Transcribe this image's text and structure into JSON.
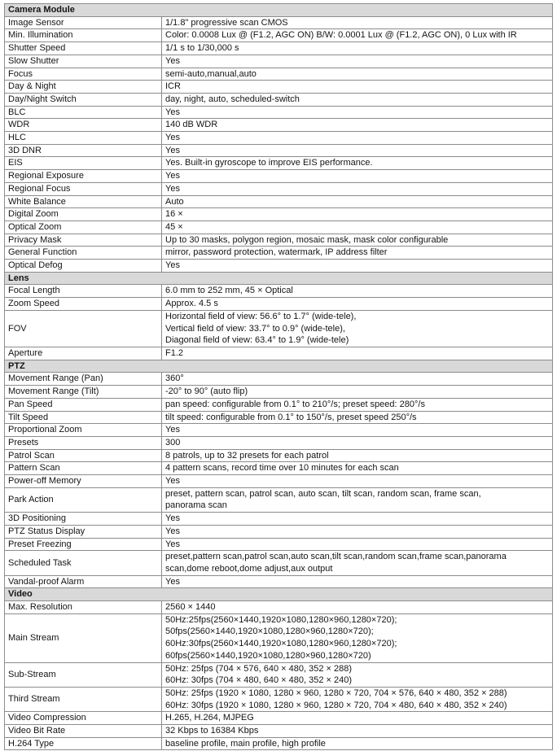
{
  "document": {
    "type": "specification-table"
  },
  "colors": {
    "section_header_bg": "#d9d9d9",
    "border": "#8c8c8c",
    "border_dark": "#5a5a5a",
    "text": "#141414"
  },
  "table": {
    "sections": [
      {
        "header": "Camera Module",
        "rows": [
          {
            "label": "Image Sensor",
            "lines": [
              "1/1.8\" progressive scan CMOS"
            ]
          },
          {
            "label": "Min. Illumination",
            "lines": [
              "Color: 0.0008 Lux @ (F1.2, AGC ON) B/W: 0.0001 Lux @ (F1.2, AGC ON), 0 Lux with IR"
            ]
          },
          {
            "label": "Shutter Speed",
            "lines": [
              "1/1 s to 1/30,000 s"
            ]
          },
          {
            "label": "Slow Shutter",
            "lines": [
              "Yes"
            ]
          },
          {
            "label": "Focus",
            "lines": [
              "semi-auto,manual,auto"
            ]
          },
          {
            "label": "Day & Night",
            "lines": [
              "ICR"
            ]
          },
          {
            "label": "Day/Night Switch",
            "lines": [
              "day, night, auto, scheduled-switch"
            ]
          },
          {
            "label": "BLC",
            "lines": [
              "Yes"
            ]
          },
          {
            "label": "WDR",
            "lines": [
              "140 dB WDR"
            ]
          },
          {
            "label": "HLC",
            "lines": [
              "Yes"
            ]
          },
          {
            "label": "3D DNR",
            "lines": [
              "Yes"
            ]
          },
          {
            "label": "EIS",
            "lines": [
              "Yes. Built-in gyroscope to improve EIS performance."
            ]
          },
          {
            "label": "Regional Exposure",
            "lines": [
              "Yes"
            ]
          },
          {
            "label": "Regional Focus",
            "lines": [
              "Yes"
            ]
          },
          {
            "label": "White Balance",
            "lines": [
              "Auto"
            ]
          },
          {
            "label": "Digital Zoom",
            "lines": [
              "16 ×"
            ]
          },
          {
            "label": "Optical Zoom",
            "lines": [
              "45 ×"
            ]
          },
          {
            "label": "Privacy Mask",
            "lines": [
              "Up to 30 masks, polygon region, mosaic mask, mask color configurable"
            ]
          },
          {
            "label": "General Function",
            "lines": [
              "mirror, password protection, watermark, IP address filter"
            ]
          },
          {
            "label": "Optical Defog",
            "lines": [
              "Yes"
            ]
          }
        ]
      },
      {
        "header": "Lens",
        "rows": [
          {
            "label": "Focal Length",
            "lines": [
              "6.0 mm to 252 mm, 45 × Optical"
            ]
          },
          {
            "label": "Zoom Speed",
            "lines": [
              "Approx. 4.5 s"
            ]
          },
          {
            "label": "FOV",
            "lines": [
              "Horizontal field of view: 56.6° to 1.7° (wide-tele),",
              "Vertical field of view: 33.7° to 0.9° (wide-tele),",
              "Diagonal field of view: 63.4° to 1.9° (wide-tele)"
            ]
          },
          {
            "label": "Aperture",
            "lines": [
              "F1.2"
            ]
          }
        ]
      },
      {
        "header": "PTZ",
        "rows": [
          {
            "label": "Movement Range (Pan)",
            "lines": [
              "360°"
            ]
          },
          {
            "label": "Movement Range (Tilt)",
            "lines": [
              "-20° to 90° (auto flip)"
            ]
          },
          {
            "label": "Pan Speed",
            "lines": [
              "pan speed: configurable from 0.1° to 210°/s; preset speed: 280°/s"
            ]
          },
          {
            "label": "Tilt Speed",
            "lines": [
              "tilt speed: configurable from 0.1° to 150°/s, preset speed 250°/s"
            ]
          },
          {
            "label": "Proportional Zoom",
            "lines": [
              "Yes"
            ]
          },
          {
            "label": "Presets",
            "lines": [
              "300"
            ]
          },
          {
            "label": "Patrol Scan",
            "lines": [
              "8 patrols, up to 32 presets for each patrol"
            ]
          },
          {
            "label": "Pattern Scan",
            "lines": [
              "4 pattern scans, record time over 10 minutes for each scan"
            ]
          },
          {
            "label": "Power-off Memory",
            "lines": [
              "Yes"
            ]
          },
          {
            "label": "Park Action",
            "lines": [
              "preset, pattern scan, patrol scan, auto scan, tilt scan, random scan, frame scan,",
              "panorama scan"
            ]
          },
          {
            "label": "3D Positioning",
            "lines": [
              "Yes"
            ]
          },
          {
            "label": "PTZ Status Display",
            "lines": [
              "Yes"
            ]
          },
          {
            "label": "Preset Freezing",
            "lines": [
              "Yes"
            ]
          },
          {
            "label": "Scheduled Task",
            "lines": [
              "preset,pattern scan,patrol scan,auto scan,tilt scan,random scan,frame scan,panorama",
              "scan,dome reboot,dome adjust,aux output"
            ]
          },
          {
            "label": "Vandal-proof Alarm",
            "lines": [
              "Yes"
            ]
          }
        ]
      },
      {
        "header": "Video",
        "rows": [
          {
            "label": "Max. Resolution",
            "lines": [
              "2560 × 1440"
            ]
          },
          {
            "label": "Main Stream",
            "lines": [
              "50Hz:25fps(2560×1440,1920×1080,1280×960,1280×720);",
              "50fps(2560×1440,1920×1080,1280×960,1280×720);",
              "60Hz:30fps(2560×1440,1920×1080,1280×960,1280×720);",
              "60fps(2560×1440,1920×1080,1280×960,1280×720)"
            ]
          },
          {
            "label": "Sub-Stream",
            "lines": [
              "50Hz: 25fps (704 × 576, 640 × 480, 352 × 288)",
              "60Hz: 30fps (704 × 480, 640 × 480, 352 × 240)"
            ]
          },
          {
            "label": "Third Stream",
            "lines": [
              "50Hz: 25fps (1920 × 1080, 1280 × 960, 1280 × 720, 704 × 576, 640 × 480, 352 × 288)",
              "60Hz: 30fps (1920 × 1080, 1280 × 960, 1280 × 720, 704 × 480, 640 × 480, 352 × 240)"
            ]
          },
          {
            "label": "Video Compression",
            "lines": [
              "H.265, H.264, MJPEG"
            ]
          },
          {
            "label": "Video Bit Rate",
            "lines": [
              "32 Kbps to 16384 Kbps"
            ]
          },
          {
            "label": "H.264 Type",
            "lines": [
              "baseline profile, main profile, high profile"
            ]
          }
        ]
      }
    ]
  }
}
